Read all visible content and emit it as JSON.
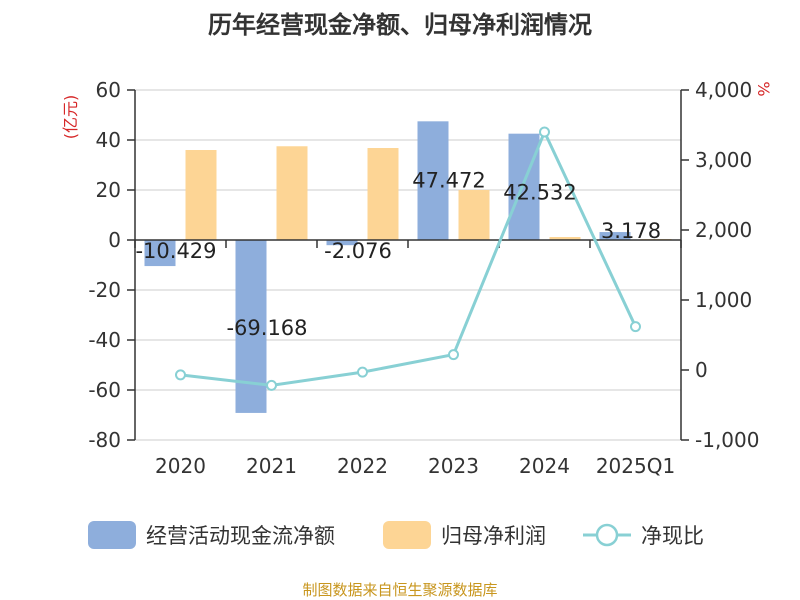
{
  "chart_data": {
    "type": "bar",
    "title": "历年经营现金净额、归母净利润情况",
    "left_unit": "(亿元)",
    "right_unit": "%",
    "categories": [
      "2020",
      "2021",
      "2022",
      "2023",
      "2024",
      "2025Q1"
    ],
    "left_axis": {
      "ylim": [
        -80,
        60
      ],
      "ticks": [
        "60",
        "40",
        "20",
        "0",
        "-20",
        "-40",
        "-60",
        "-80"
      ]
    },
    "right_axis": {
      "ylim": [
        -1000,
        4000
      ],
      "ticks": [
        "4,000",
        "3,000",
        "2,000",
        "1,000",
        "0",
        "-1,000"
      ]
    },
    "series": [
      {
        "name": "经营活动现金流净额",
        "type": "bar",
        "axis": "left",
        "color": "#8eaedc",
        "values": [
          -10.429,
          -69.168,
          -2.076,
          47.472,
          42.532,
          3.178
        ],
        "labels": [
          "-10.429",
          "-69.168",
          "-2.076",
          "47.472",
          "42.532",
          "3.178"
        ]
      },
      {
        "name": "归母净利润",
        "type": "bar",
        "axis": "left",
        "color": "#fdd595",
        "values": [
          36,
          37.5,
          36.8,
          20,
          1.2,
          0.4
        ]
      },
      {
        "name": "净现比",
        "type": "line",
        "axis": "right",
        "color": "#88d0d4",
        "values": [
          -70,
          -220,
          -30,
          220,
          3400,
          620
        ]
      }
    ],
    "legend_position": "bottom",
    "grid": true
  },
  "source": "制图数据来自恒生聚源数据库"
}
